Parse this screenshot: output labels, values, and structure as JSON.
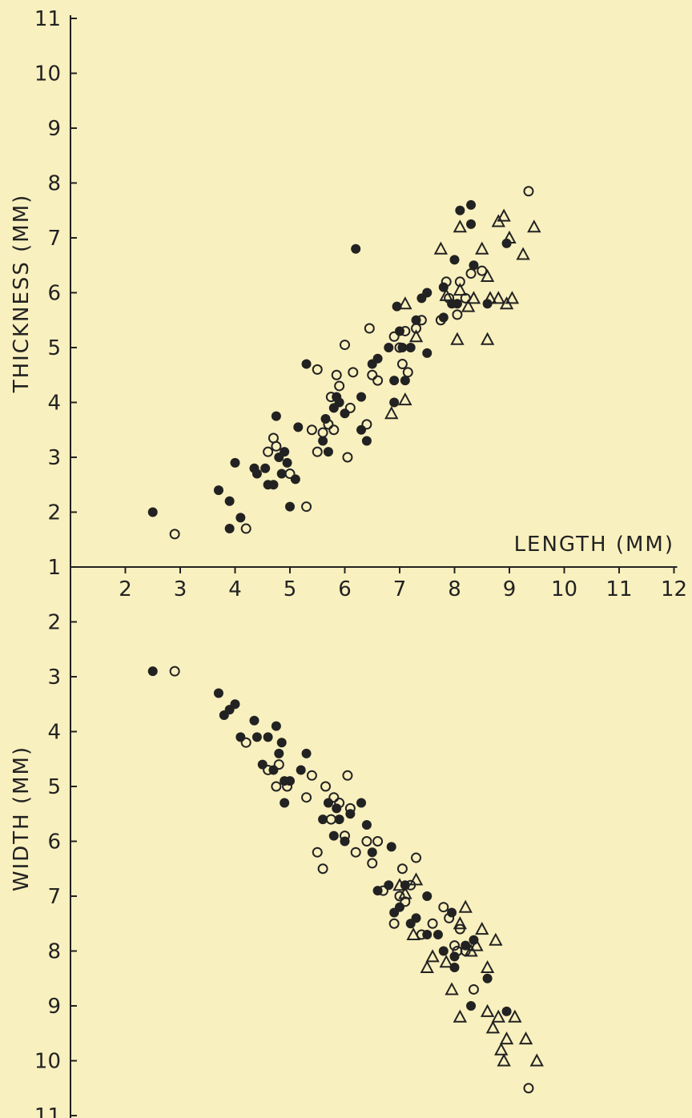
{
  "chart_data": {
    "type": "scatter",
    "x_axis": {
      "label": "LENGTH (MM)",
      "min": 1,
      "max": 12,
      "ticks": [
        "2",
        "3",
        "4",
        "5",
        "6",
        "7",
        "8",
        "9",
        "10",
        "11",
        "12"
      ]
    },
    "legend": "none",
    "grid": false,
    "colors": {
      "background": "#f9f0bf",
      "ink": "#222222"
    },
    "panels": [
      {
        "name": "thickness-vs-length",
        "ylabel": "THICKNESS (MM)",
        "ylim": [
          1,
          11
        ],
        "y_direction": "up",
        "yticks": [
          "1",
          "2",
          "3",
          "4",
          "5",
          "6",
          "7",
          "8",
          "9",
          "10",
          "11"
        ],
        "series": [
          {
            "marker": "filled-circle",
            "points": [
              [
                2.5,
                2.0
              ],
              [
                3.7,
                2.4
              ],
              [
                3.9,
                2.2
              ],
              [
                3.9,
                1.7
              ],
              [
                4.0,
                2.9
              ],
              [
                4.1,
                1.9
              ],
              [
                4.35,
                2.8
              ],
              [
                4.4,
                2.7
              ],
              [
                4.55,
                2.8
              ],
              [
                4.6,
                2.5
              ],
              [
                4.7,
                2.5
              ],
              [
                4.75,
                3.75
              ],
              [
                4.8,
                3.0
              ],
              [
                4.85,
                2.7
              ],
              [
                4.9,
                3.1
              ],
              [
                4.95,
                2.9
              ],
              [
                5.0,
                2.1
              ],
              [
                5.1,
                2.6
              ],
              [
                5.15,
                3.55
              ],
              [
                5.3,
                4.7
              ],
              [
                5.6,
                3.3
              ],
              [
                5.65,
                3.7
              ],
              [
                5.7,
                3.1
              ],
              [
                5.8,
                3.9
              ],
              [
                5.85,
                4.1
              ],
              [
                5.9,
                4.0
              ],
              [
                6.0,
                3.8
              ],
              [
                6.2,
                6.8
              ],
              [
                6.3,
                3.5
              ],
              [
                6.3,
                4.1
              ],
              [
                6.4,
                3.3
              ],
              [
                6.5,
                4.7
              ],
              [
                6.6,
                4.8
              ],
              [
                6.8,
                5.0
              ],
              [
                6.9,
                4.0
              ],
              [
                6.9,
                4.4
              ],
              [
                6.95,
                5.75
              ],
              [
                7.0,
                5.3
              ],
              [
                7.05,
                5.0
              ],
              [
                7.1,
                4.4
              ],
              [
                7.2,
                5.0
              ],
              [
                7.3,
                5.5
              ],
              [
                7.4,
                5.9
              ],
              [
                7.5,
                6.0
              ],
              [
                7.5,
                4.9
              ],
              [
                7.8,
                5.55
              ],
              [
                7.8,
                6.1
              ],
              [
                7.95,
                5.8
              ],
              [
                8.0,
                6.6
              ],
              [
                8.05,
                5.8
              ],
              [
                8.1,
                7.5
              ],
              [
                8.3,
                7.25
              ],
              [
                8.3,
                7.6
              ],
              [
                8.35,
                6.5
              ],
              [
                8.6,
                5.8
              ],
              [
                8.95,
                6.9
              ]
            ]
          },
          {
            "marker": "open-circle",
            "points": [
              [
                2.9,
                1.6
              ],
              [
                4.2,
                1.7
              ],
              [
                4.6,
                3.1
              ],
              [
                4.7,
                3.35
              ],
              [
                4.75,
                3.2
              ],
              [
                5.0,
                2.7
              ],
              [
                5.3,
                2.1
              ],
              [
                5.4,
                3.5
              ],
              [
                5.5,
                4.6
              ],
              [
                5.5,
                3.1
              ],
              [
                5.6,
                3.45
              ],
              [
                5.7,
                3.6
              ],
              [
                5.75,
                4.1
              ],
              [
                5.8,
                3.5
              ],
              [
                5.85,
                4.5
              ],
              [
                5.9,
                4.3
              ],
              [
                6.0,
                5.05
              ],
              [
                6.05,
                3.0
              ],
              [
                6.1,
                3.9
              ],
              [
                6.15,
                4.55
              ],
              [
                6.4,
                3.6
              ],
              [
                6.45,
                5.35
              ],
              [
                6.5,
                4.5
              ],
              [
                6.6,
                4.4
              ],
              [
                6.9,
                5.2
              ],
              [
                7.0,
                5.0
              ],
              [
                7.05,
                4.7
              ],
              [
                7.1,
                5.3
              ],
              [
                7.15,
                4.55
              ],
              [
                7.3,
                5.35
              ],
              [
                7.4,
                5.5
              ],
              [
                7.75,
                5.5
              ],
              [
                7.85,
                6.2
              ],
              [
                7.9,
                5.9
              ],
              [
                8.05,
                5.6
              ],
              [
                8.1,
                6.2
              ],
              [
                8.2,
                5.9
              ],
              [
                8.3,
                6.35
              ],
              [
                8.5,
                6.4
              ],
              [
                9.35,
                7.85
              ]
            ]
          },
          {
            "marker": "open-triangle",
            "points": [
              [
                6.85,
                3.8
              ],
              [
                7.1,
                4.05
              ],
              [
                7.1,
                5.8
              ],
              [
                7.3,
                5.2
              ],
              [
                7.75,
                6.8
              ],
              [
                7.85,
                5.95
              ],
              [
                8.05,
                5.15
              ],
              [
                8.1,
                7.2
              ],
              [
                8.1,
                6.05
              ],
              [
                8.25,
                5.75
              ],
              [
                8.35,
                5.9
              ],
              [
                8.5,
                6.8
              ],
              [
                8.6,
                6.3
              ],
              [
                8.6,
                5.15
              ],
              [
                8.65,
                5.9
              ],
              [
                8.8,
                7.3
              ],
              [
                8.8,
                5.9
              ],
              [
                8.9,
                7.4
              ],
              [
                8.95,
                5.8
              ],
              [
                9.0,
                7.0
              ],
              [
                9.05,
                5.9
              ],
              [
                9.25,
                6.7
              ],
              [
                9.45,
                7.2
              ]
            ]
          }
        ]
      },
      {
        "name": "width-vs-length",
        "ylabel": "WIDTH (MM)",
        "ylim": [
          1,
          11
        ],
        "y_direction": "down",
        "yticks": [
          "2",
          "3",
          "4",
          "5",
          "6",
          "7",
          "8",
          "9",
          "10",
          "11"
        ],
        "series": [
          {
            "marker": "filled-circle",
            "points": [
              [
                2.5,
                2.9
              ],
              [
                3.7,
                3.3
              ],
              [
                3.8,
                3.7
              ],
              [
                3.9,
                3.6
              ],
              [
                4.0,
                3.5
              ],
              [
                4.1,
                4.1
              ],
              [
                4.35,
                3.8
              ],
              [
                4.4,
                4.1
              ],
              [
                4.5,
                4.6
              ],
              [
                4.6,
                4.1
              ],
              [
                4.7,
                4.7
              ],
              [
                4.75,
                3.9
              ],
              [
                4.8,
                4.4
              ],
              [
                4.85,
                4.2
              ],
              [
                4.9,
                4.9
              ],
              [
                4.9,
                5.3
              ],
              [
                5.0,
                4.9
              ],
              [
                5.2,
                4.7
              ],
              [
                5.3,
                4.4
              ],
              [
                5.6,
                5.6
              ],
              [
                5.7,
                5.3
              ],
              [
                5.8,
                5.9
              ],
              [
                5.85,
                5.4
              ],
              [
                5.9,
                5.6
              ],
              [
                6.0,
                6.0
              ],
              [
                6.1,
                5.5
              ],
              [
                6.3,
                5.3
              ],
              [
                6.4,
                5.7
              ],
              [
                6.5,
                6.2
              ],
              [
                6.6,
                6.9
              ],
              [
                6.8,
                6.8
              ],
              [
                6.85,
                6.1
              ],
              [
                6.9,
                7.3
              ],
              [
                7.0,
                7.2
              ],
              [
                7.1,
                6.8
              ],
              [
                7.2,
                7.5
              ],
              [
                7.3,
                7.4
              ],
              [
                7.5,
                7.7
              ],
              [
                7.5,
                7.0
              ],
              [
                7.7,
                7.7
              ],
              [
                7.8,
                8.0
              ],
              [
                7.95,
                7.3
              ],
              [
                8.0,
                8.1
              ],
              [
                8.0,
                8.3
              ],
              [
                8.2,
                7.9
              ],
              [
                8.3,
                9.0
              ],
              [
                8.35,
                7.8
              ],
              [
                8.6,
                8.5
              ],
              [
                8.95,
                9.1
              ]
            ]
          },
          {
            "marker": "open-circle",
            "points": [
              [
                2.9,
                2.9
              ],
              [
                4.2,
                4.2
              ],
              [
                4.6,
                4.7
              ],
              [
                4.75,
                5.0
              ],
              [
                4.8,
                4.6
              ],
              [
                4.95,
                5.0
              ],
              [
                5.3,
                5.2
              ],
              [
                5.4,
                4.8
              ],
              [
                5.5,
                6.2
              ],
              [
                5.6,
                6.5
              ],
              [
                5.65,
                5.0
              ],
              [
                5.75,
                5.6
              ],
              [
                5.8,
                5.2
              ],
              [
                5.9,
                5.3
              ],
              [
                6.0,
                5.9
              ],
              [
                6.05,
                4.8
              ],
              [
                6.1,
                5.4
              ],
              [
                6.2,
                6.2
              ],
              [
                6.4,
                6.0
              ],
              [
                6.5,
                6.4
              ],
              [
                6.6,
                6.0
              ],
              [
                6.7,
                6.9
              ],
              [
                6.9,
                7.5
              ],
              [
                7.0,
                7.0
              ],
              [
                7.05,
                6.5
              ],
              [
                7.1,
                7.1
              ],
              [
                7.2,
                6.8
              ],
              [
                7.3,
                6.3
              ],
              [
                7.4,
                7.7
              ],
              [
                7.6,
                7.5
              ],
              [
                7.8,
                7.2
              ],
              [
                7.9,
                7.4
              ],
              [
                8.0,
                7.9
              ],
              [
                8.05,
                8.0
              ],
              [
                8.1,
                7.6
              ],
              [
                8.2,
                8.0
              ],
              [
                8.35,
                8.7
              ],
              [
                9.35,
                10.5
              ]
            ]
          },
          {
            "marker": "open-triangle",
            "points": [
              [
                7.0,
                6.8
              ],
              [
                7.1,
                6.95
              ],
              [
                7.25,
                7.7
              ],
              [
                7.3,
                6.7
              ],
              [
                7.5,
                8.3
              ],
              [
                7.6,
                8.1
              ],
              [
                7.85,
                8.2
              ],
              [
                7.95,
                8.7
              ],
              [
                8.1,
                7.5
              ],
              [
                8.1,
                9.2
              ],
              [
                8.2,
                7.2
              ],
              [
                8.3,
                8.0
              ],
              [
                8.4,
                7.9
              ],
              [
                8.5,
                7.6
              ],
              [
                8.6,
                9.1
              ],
              [
                8.6,
                8.3
              ],
              [
                8.7,
                9.4
              ],
              [
                8.75,
                7.8
              ],
              [
                8.8,
                9.2
              ],
              [
                8.85,
                9.8
              ],
              [
                8.9,
                10.0
              ],
              [
                8.95,
                9.6
              ],
              [
                9.1,
                9.2
              ],
              [
                9.3,
                9.6
              ],
              [
                9.5,
                10.0
              ]
            ]
          }
        ]
      }
    ]
  }
}
